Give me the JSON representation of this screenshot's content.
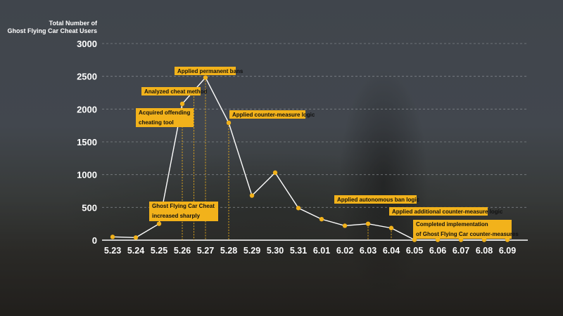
{
  "chart_data": {
    "type": "line",
    "ylabel": "Total Number of\nGhost Flying Car Cheat Users",
    "ylim": [
      0,
      3000
    ],
    "yticks": [
      0,
      500,
      1000,
      1500,
      2000,
      2500,
      3000
    ],
    "categories": [
      "5.23",
      "5.24",
      "5.25",
      "5.26",
      "5.27",
      "5.28",
      "5.29",
      "5.30",
      "5.31",
      "6.01",
      "6.02",
      "6.03",
      "6.04",
      "6.05",
      "6.06",
      "6.07",
      "6.08",
      "6.09"
    ],
    "values": [
      50,
      40,
      250,
      2080,
      2480,
      1790,
      680,
      1030,
      490,
      320,
      220,
      250,
      185,
      5,
      5,
      5,
      5,
      5
    ],
    "grid": true,
    "colors": {
      "line": "#ffffff",
      "marker": "#f2b21b",
      "label_bg": "#f2b21b",
      "label_text": "#111111",
      "grid": "#9a9ea3"
    },
    "annotations": [
      {
        "index": 2,
        "lines": [
          "Ghost Flying Car Cheat",
          "increased sharply"
        ],
        "anchor": "below"
      },
      {
        "index": 3,
        "lines": [
          "Acquired offending",
          "cheating tool"
        ],
        "anchor": "above-left"
      },
      {
        "index": 3.5,
        "lines": [
          "Analyzed cheat method"
        ],
        "anchor": "above"
      },
      {
        "index": 4,
        "lines": [
          "Applied permanent bans"
        ],
        "anchor": "above"
      },
      {
        "index": 5,
        "lines": [
          "Applied counter-measure logic"
        ],
        "anchor": "right"
      },
      {
        "index": 11,
        "lines": [
          "Applied autonomous ban logic"
        ],
        "anchor": "above"
      },
      {
        "index": 12,
        "lines": [
          "Applied additional counter-measure logic"
        ],
        "anchor": "above"
      },
      {
        "index": 13,
        "lines": [
          "Completed implementation",
          "of Ghost Flying Car counter-measures"
        ],
        "anchor": "above-right"
      }
    ]
  }
}
